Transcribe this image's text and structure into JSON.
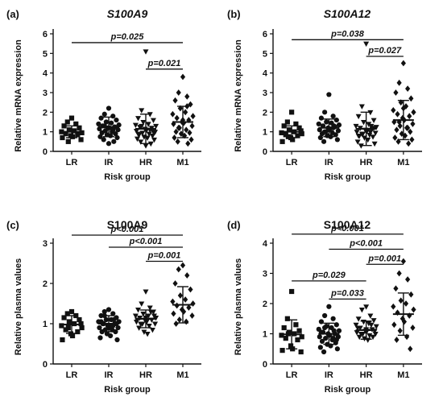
{
  "chart_data": [
    {
      "type": "scatter",
      "panel_label": "(a)",
      "title": "S100A9",
      "title_italic": true,
      "xlabel": "Risk group",
      "ylabel": "Relative mRNA expression",
      "ylim": [
        0,
        6
      ],
      "yticks": [
        "0",
        "1",
        "2",
        "3",
        "4",
        "5",
        "6"
      ],
      "categories": [
        "LR",
        "IR",
        "HR",
        "M1"
      ],
      "markers": [
        "square",
        "circle",
        "triangle-down",
        "diamond"
      ],
      "groups": [
        {
          "name": "LR",
          "mean": 1.0,
          "sd": 0.3,
          "values": [
            1.7,
            1.5,
            1.4,
            1.3,
            1.2,
            1.1,
            1.05,
            1.0,
            0.95,
            0.9,
            0.85,
            0.8,
            0.75,
            0.7,
            0.6,
            0.5
          ]
        },
        {
          "name": "IR",
          "mean": 1.25,
          "sd": 0.5,
          "values": [
            2.2,
            1.9,
            1.8,
            1.7,
            1.6,
            1.5,
            1.45,
            1.4,
            1.35,
            1.3,
            1.25,
            1.2,
            1.2,
            1.15,
            1.1,
            1.05,
            1.0,
            0.95,
            0.9,
            0.85,
            0.8,
            0.75,
            0.7,
            0.6,
            0.5,
            0.4,
            1.3,
            1.1
          ]
        },
        {
          "name": "HR",
          "mean": 1.15,
          "sd": 0.75,
          "values": [
            5.1,
            2.1,
            1.9,
            1.7,
            1.6,
            1.5,
            1.4,
            1.35,
            1.3,
            1.25,
            1.2,
            1.15,
            1.1,
            1.05,
            1.0,
            0.95,
            0.9,
            0.85,
            0.8,
            0.75,
            0.7,
            0.65,
            0.6,
            0.5,
            0.4,
            0.3,
            1.3,
            1.1,
            0.9,
            1.0
          ]
        },
        {
          "name": "M1",
          "mean": 1.5,
          "sd": 0.8,
          "values": [
            3.8,
            3.0,
            2.8,
            2.6,
            2.4,
            2.2,
            2.0,
            1.9,
            1.8,
            1.7,
            1.6,
            1.5,
            1.45,
            1.4,
            1.3,
            1.2,
            1.1,
            1.0,
            0.95,
            0.9,
            0.8,
            0.7,
            0.6,
            0.5,
            0.4,
            1.6,
            1.2,
            2.3
          ]
        }
      ],
      "brackets": [
        {
          "from": "LR",
          "to": "M1",
          "y": 5.55,
          "label": "p=0.025"
        },
        {
          "from": "HR",
          "to": "M1",
          "y": 4.2,
          "label": "p=0.021"
        }
      ]
    },
    {
      "type": "scatter",
      "panel_label": "(b)",
      "title": "S100A12",
      "title_italic": true,
      "xlabel": "Risk group",
      "ylabel": "Relative mRNA expression",
      "ylim": [
        0,
        6
      ],
      "yticks": [
        "0",
        "1",
        "2",
        "3",
        "4",
        "5",
        "6"
      ],
      "categories": [
        "LR",
        "IR",
        "HR",
        "M1"
      ],
      "markers": [
        "square",
        "circle",
        "triangle-down",
        "diamond"
      ],
      "groups": [
        {
          "name": "LR",
          "mean": 1.0,
          "sd": 0.3,
          "values": [
            2.0,
            1.5,
            1.4,
            1.3,
            1.2,
            1.1,
            1.0,
            0.95,
            0.9,
            0.85,
            0.8,
            0.7,
            0.6,
            0.5,
            1.05,
            0.75
          ]
        },
        {
          "name": "IR",
          "mean": 1.2,
          "sd": 0.45,
          "values": [
            2.9,
            2.0,
            1.8,
            1.7,
            1.6,
            1.5,
            1.45,
            1.4,
            1.35,
            1.3,
            1.25,
            1.2,
            1.15,
            1.1,
            1.05,
            1.0,
            0.95,
            0.9,
            0.85,
            0.8,
            0.75,
            0.7,
            0.6,
            0.5,
            1.3,
            1.1,
            1.0,
            1.2
          ]
        },
        {
          "name": "HR",
          "mean": 1.15,
          "sd": 0.85,
          "values": [
            5.5,
            2.3,
            2.0,
            1.8,
            1.6,
            1.5,
            1.4,
            1.3,
            1.25,
            1.2,
            1.15,
            1.1,
            1.05,
            1.0,
            0.95,
            0.9,
            0.85,
            0.8,
            0.75,
            0.7,
            0.6,
            0.5,
            0.4,
            0.3,
            1.3,
            1.1,
            0.9,
            1.0,
            0.8,
            1.2
          ]
        },
        {
          "name": "M1",
          "mean": 1.6,
          "sd": 1.0,
          "values": [
            4.5,
            3.5,
            3.2,
            3.0,
            2.7,
            2.5,
            2.3,
            2.1,
            2.0,
            1.9,
            1.8,
            1.7,
            1.6,
            1.5,
            1.4,
            1.3,
            1.2,
            1.1,
            1.0,
            0.9,
            0.8,
            0.7,
            0.6,
            0.5,
            0.4,
            2.2,
            1.5,
            1.2
          ]
        }
      ],
      "brackets": [
        {
          "from": "LR",
          "to": "M1",
          "y": 5.7,
          "label": "p=0.038"
        },
        {
          "from": "HR",
          "to": "M1",
          "y": 4.85,
          "label": "p=0.027"
        }
      ]
    },
    {
      "type": "scatter",
      "panel_label": "(c)",
      "title": "S100A9",
      "title_italic": false,
      "xlabel": "Risk group",
      "ylabel": "Relative plasma values",
      "ylim": [
        0,
        3
      ],
      "yticks": [
        "0",
        "1",
        "2",
        "3"
      ],
      "categories": [
        "LR",
        "IR",
        "HR",
        "M1"
      ],
      "markers": [
        "square",
        "circle",
        "triangle-down",
        "diamond"
      ],
      "groups": [
        {
          "name": "LR",
          "mean": 0.98,
          "sd": 0.22,
          "values": [
            1.3,
            1.25,
            1.2,
            1.15,
            1.1,
            1.05,
            1.0,
            0.95,
            0.9,
            0.85,
            0.8,
            0.75,
            0.7,
            0.6,
            1.0,
            0.9
          ]
        },
        {
          "name": "IR",
          "mean": 1.0,
          "sd": 0.2,
          "values": [
            1.35,
            1.3,
            1.25,
            1.2,
            1.15,
            1.1,
            1.1,
            1.05,
            1.05,
            1.0,
            1.0,
            0.95,
            0.95,
            0.9,
            0.9,
            0.85,
            0.85,
            0.8,
            0.8,
            0.75,
            0.7,
            0.65,
            0.6,
            1.0,
            1.1,
            0.9,
            1.2,
            0.95,
            1.05,
            1.0
          ]
        },
        {
          "name": "HR",
          "mean": 1.12,
          "sd": 0.22,
          "values": [
            1.8,
            1.5,
            1.4,
            1.35,
            1.3,
            1.25,
            1.2,
            1.2,
            1.15,
            1.15,
            1.1,
            1.1,
            1.05,
            1.05,
            1.0,
            1.0,
            0.95,
            0.9,
            0.85,
            0.8,
            0.75,
            1.1,
            1.2,
            1.0,
            1.3,
            1.15
          ]
        },
        {
          "name": "M1",
          "mean": 1.47,
          "sd": 0.45,
          "values": [
            2.45,
            2.35,
            2.2,
            2.0,
            1.85,
            1.7,
            1.6,
            1.55,
            1.5,
            1.45,
            1.4,
            1.35,
            1.3,
            1.25,
            1.2,
            1.1,
            1.05,
            1.0
          ]
        }
      ],
      "brackets": [
        {
          "from": "LR",
          "to": "M1",
          "y": 3.2,
          "label": "p<0.001"
        },
        {
          "from": "IR",
          "to": "M1",
          "y": 2.9,
          "label": "p<0.001"
        },
        {
          "from": "HR",
          "to": "M1",
          "y": 2.55,
          "label": "p=0.001"
        }
      ]
    },
    {
      "type": "scatter",
      "panel_label": "(d)",
      "title": "S100A12",
      "title_italic": false,
      "xlabel": "Risk group",
      "ylabel": "Relative plasma values",
      "ylim": [
        0,
        4
      ],
      "yticks": [
        "0",
        "1",
        "2",
        "3",
        "4"
      ],
      "categories": [
        "LR",
        "IR",
        "HR",
        "M1"
      ],
      "markers": [
        "square",
        "circle",
        "triangle-down",
        "diamond"
      ],
      "groups": [
        {
          "name": "LR",
          "mean": 0.98,
          "sd": 0.48,
          "values": [
            2.4,
            1.5,
            1.3,
            1.2,
            1.1,
            1.05,
            1.0,
            0.95,
            0.9,
            0.85,
            0.8,
            0.6,
            0.5,
            0.45,
            0.4,
            1.0
          ]
        },
        {
          "name": "IR",
          "mean": 1.0,
          "sd": 0.35,
          "values": [
            1.9,
            1.6,
            1.5,
            1.4,
            1.3,
            1.25,
            1.2,
            1.15,
            1.1,
            1.05,
            1.0,
            1.0,
            0.95,
            0.9,
            0.9,
            0.85,
            0.8,
            0.75,
            0.7,
            0.65,
            0.6,
            0.55,
            0.5,
            0.4,
            1.1,
            0.95,
            1.2,
            0.85,
            1.05,
            0.8
          ]
        },
        {
          "name": "HR",
          "mean": 1.12,
          "sd": 0.3,
          "values": [
            1.9,
            1.8,
            1.6,
            1.5,
            1.45,
            1.4,
            1.35,
            1.3,
            1.25,
            1.2,
            1.15,
            1.1,
            1.1,
            1.05,
            1.0,
            1.0,
            0.95,
            0.9,
            0.9,
            0.85,
            0.8,
            1.2,
            1.1,
            1.0,
            1.3,
            1.15
          ]
        },
        {
          "name": "M1",
          "mean": 1.65,
          "sd": 0.7,
          "values": [
            3.4,
            3.0,
            2.8,
            2.5,
            2.3,
            2.1,
            2.0,
            1.9,
            1.8,
            1.7,
            1.6,
            1.5,
            1.4,
            1.3,
            1.2,
            1.1,
            0.9,
            0.8,
            0.5
          ]
        }
      ],
      "brackets": [
        {
          "from": "LR",
          "to": "M1",
          "y": 4.3,
          "label": "p<0.001"
        },
        {
          "from": "IR",
          "to": "M1",
          "y": 3.8,
          "label": "p<0.001"
        },
        {
          "from": "HR",
          "to": "M1",
          "y": 3.3,
          "label": "p=0.001"
        },
        {
          "from": "LR",
          "to": "HR",
          "y": 2.75,
          "label": "p=0.029"
        },
        {
          "from": "IR",
          "to": "HR",
          "y": 2.15,
          "label": "p=0.033"
        }
      ]
    }
  ]
}
